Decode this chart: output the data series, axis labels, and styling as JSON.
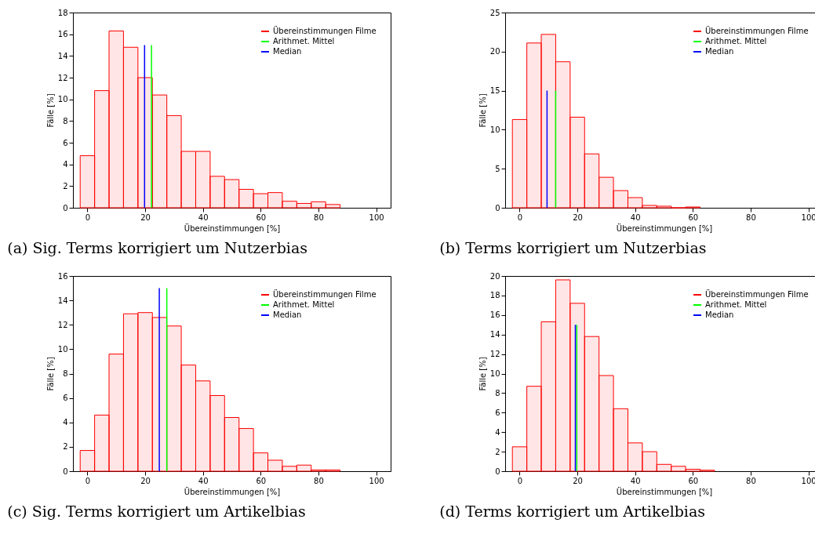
{
  "chart_data": [
    {
      "type": "histogram",
      "title": "(a) Sig. Terms korrigiert um Nutzerbias",
      "xlabel": "Übereinstimmungen [%]",
      "ylabel": "Fälle [%]",
      "bins": [
        -2.5,
        2.5,
        7.5,
        12.5,
        17.5,
        22.5,
        27.5,
        32.5,
        37.5,
        42.5,
        47.5,
        52.5,
        57.5,
        62.5,
        67.5,
        72.5,
        77.5,
        82.5,
        87.5
      ],
      "series": [
        {
          "name": "Übereinstimmungen Filme",
          "color": "#ff0000",
          "values": [
            4.8,
            10.8,
            16.3,
            14.8,
            12.0,
            10.4,
            8.5,
            5.2,
            5.2,
            2.9,
            2.6,
            1.7,
            1.3,
            1.4,
            0.6,
            0.4,
            0.55,
            0.3
          ]
        },
        {
          "name": "Arithmet. Mittel",
          "type": "line",
          "color": "#00ff00",
          "x": [
            22.2,
            22.2
          ],
          "values": [
            0,
            15
          ]
        },
        {
          "name": "Median",
          "type": "line",
          "color": "#0000ff",
          "x": [
            19.8,
            19.8
          ],
          "values": [
            0,
            15
          ]
        }
      ],
      "xlim": [
        -5,
        105
      ],
      "xticks": [
        0,
        20,
        40,
        60,
        80,
        100
      ],
      "ylim": [
        0,
        18
      ],
      "yticks": [
        0,
        2,
        4,
        6,
        8,
        10,
        12,
        14,
        16,
        18
      ],
      "legend": "top right",
      "grid": false
    },
    {
      "type": "histogram",
      "title": "(b) Terms korrigiert um Nutzerbias",
      "xlabel": "Übereinstimmungen [%]",
      "ylabel": "Fälle [%]",
      "bins": [
        -2.5,
        2.5,
        7.5,
        12.5,
        17.5,
        22.5,
        27.5,
        32.5,
        37.5,
        42.5,
        47.5,
        52.5,
        57.5,
        62.5
      ],
      "series": [
        {
          "name": "Übereinstimmungen Filme",
          "color": "#ff0000",
          "values": [
            11.3,
            21.1,
            22.2,
            18.7,
            11.6,
            6.9,
            3.9,
            2.2,
            1.3,
            0.3,
            0.2,
            0,
            0.1
          ]
        },
        {
          "name": "Arithmet. Mittel",
          "type": "line",
          "color": "#00ff00",
          "x": [
            12.5,
            12.5
          ],
          "values": [
            0,
            15
          ]
        },
        {
          "name": "Median",
          "type": "line",
          "color": "#0000ff",
          "x": [
            9.5,
            9.5
          ],
          "values": [
            0,
            15
          ]
        }
      ],
      "xlim": [
        -5,
        105
      ],
      "xticks": [
        0,
        20,
        40,
        60,
        80,
        100
      ],
      "ylim": [
        0,
        25
      ],
      "yticks": [
        0,
        5,
        10,
        15,
        20,
        25
      ],
      "legend": "top right",
      "grid": false
    },
    {
      "type": "histogram",
      "title": "(c) Sig. Terms korrigiert um Artikelbias",
      "xlabel": "Übereinstimmungen [%]",
      "ylabel": "Fälle [%]",
      "bins": [
        -2.5,
        2.5,
        7.5,
        12.5,
        17.5,
        22.5,
        27.5,
        32.5,
        37.5,
        42.5,
        47.5,
        52.5,
        57.5,
        62.5,
        67.5,
        72.5,
        77.5,
        82.5,
        87.5
      ],
      "series": [
        {
          "name": "Übereinstimmungen Filme",
          "color": "#ff0000",
          "values": [
            1.7,
            4.6,
            9.6,
            12.9,
            13.0,
            12.6,
            11.9,
            8.7,
            7.4,
            6.2,
            4.4,
            3.5,
            1.5,
            0.9,
            0.4,
            0.5,
            0.1,
            0.1
          ]
        },
        {
          "name": "Arithmet. Mittel",
          "type": "line",
          "color": "#00ff00",
          "x": [
            27.5,
            27.5
          ],
          "values": [
            0,
            15
          ]
        },
        {
          "name": "Median",
          "type": "line",
          "color": "#0000ff",
          "x": [
            24.9,
            24.9
          ],
          "values": [
            0,
            15
          ]
        }
      ],
      "xlim": [
        -5,
        105
      ],
      "xticks": [
        0,
        20,
        40,
        60,
        80,
        100
      ],
      "ylim": [
        0,
        16
      ],
      "yticks": [
        0,
        2,
        4,
        6,
        8,
        10,
        12,
        14,
        16
      ],
      "legend": "top right",
      "grid": false
    },
    {
      "type": "histogram",
      "title": "(d) Terms korrigiert um Artikelbias",
      "xlabel": "Übereinstimmungen [%]",
      "ylabel": "Fälle [%]",
      "bins": [
        -2.5,
        2.5,
        7.5,
        12.5,
        17.5,
        22.5,
        27.5,
        32.5,
        37.5,
        42.5,
        47.5,
        52.5,
        57.5,
        62.5,
        67.5
      ],
      "series": [
        {
          "name": "Übereinstimmungen Filme",
          "color": "#ff0000",
          "values": [
            2.5,
            8.7,
            15.3,
            19.6,
            17.2,
            13.8,
            9.8,
            6.4,
            2.9,
            2.0,
            0.7,
            0.5,
            0.2,
            0.1
          ]
        },
        {
          "name": "Arithmet. Mittel",
          "type": "line",
          "color": "#00ff00",
          "x": [
            19.8,
            19.8
          ],
          "values": [
            0,
            15
          ]
        },
        {
          "name": "Median",
          "type": "line",
          "color": "#0000ff",
          "x": [
            19.3,
            19.3
          ],
          "values": [
            0,
            15
          ]
        }
      ],
      "xlim": [
        -5,
        105
      ],
      "xticks": [
        0,
        20,
        40,
        60,
        80,
        100
      ],
      "ylim": [
        0,
        20
      ],
      "yticks": [
        0,
        2,
        4,
        6,
        8,
        10,
        12,
        14,
        16,
        18,
        20
      ],
      "legend": "top right",
      "grid": false
    }
  ]
}
